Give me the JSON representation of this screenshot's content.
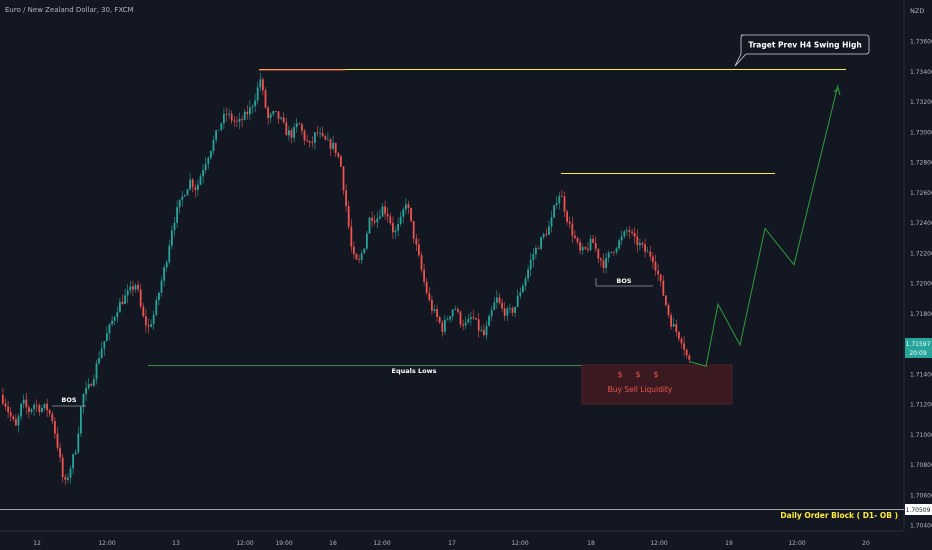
{
  "header": {
    "title": "Euro / New Zealand Dollar, 30, FXCM"
  },
  "price_axis": {
    "currency": "NZD",
    "ticks": [
      "1.73600",
      "1.73400",
      "1.73200",
      "1.73000",
      "1.72800",
      "1.72600",
      "1.72400",
      "1.72200",
      "1.72000",
      "1.71800",
      "1.71600",
      "1.71400",
      "1.71200",
      "1.71000",
      "1.70800",
      "1.70600",
      "1.70400"
    ],
    "last_price": "1.71597",
    "countdown": "20:09",
    "order_block_price": "1.70509"
  },
  "time_axis": {
    "ticks": [
      "12",
      "12:00",
      "13",
      "12:00",
      "19:00",
      "16",
      "12:00",
      "17",
      "12:00",
      "18",
      "12:00",
      "19",
      "12:00",
      "20"
    ]
  },
  "annotations": {
    "target_label": "Traget Prev H4 Swing High",
    "bos_left": "BOS",
    "bos_right": "BOS",
    "equal_lows": "Equals Lows",
    "dollar_signs": [
      "$",
      "$",
      "$"
    ],
    "liquidity_label": "Buy Sell Liquidity",
    "order_block_label": "Daily Order Block ( D1- OB )"
  },
  "colors": {
    "background": "#131722",
    "up_candle": "#26a69a",
    "down_candle": "#ef5350",
    "swing_line": "#ffeb3b",
    "equal_lows_line": "#4caf50",
    "projection_line": "#2e9e3a",
    "liquidity_box": "#3a1a20",
    "liquidity_text": "#ef5350",
    "order_block_text": "#ffeb3b",
    "last_price_badge": "#26a69a"
  },
  "chart_data": {
    "type": "candlestick",
    "symbol": "EURNZD",
    "timeframe": "30",
    "ylim": [
      1.704,
      1.737
    ],
    "levels": {
      "target_swing_high": 1.7343,
      "intermediate_swing_high": 1.7273,
      "equal_lows": 1.7147,
      "order_block": 1.70509,
      "last_price": 1.71597
    },
    "price_path": [
      [
        1.7128,
        0
      ],
      [
        1.7122,
        6
      ],
      [
        1.7112,
        12
      ],
      [
        1.7104,
        18
      ],
      [
        1.7122,
        24
      ],
      [
        1.7115,
        30
      ],
      [
        1.712,
        36
      ],
      [
        1.7117,
        42
      ],
      [
        1.7118,
        48
      ],
      [
        1.711,
        54
      ],
      [
        1.709,
        60
      ],
      [
        1.7065,
        66
      ],
      [
        1.7078,
        72
      ],
      [
        1.7092,
        78
      ],
      [
        1.7125,
        84
      ],
      [
        1.713,
        90
      ],
      [
        1.714,
        96
      ],
      [
        1.7155,
        102
      ],
      [
        1.7165,
        108
      ],
      [
        1.7175,
        114
      ],
      [
        1.7185,
        120
      ],
      [
        1.719,
        126
      ],
      [
        1.7195,
        132
      ],
      [
        1.72,
        138
      ],
      [
        1.7178,
        144
      ],
      [
        1.717,
        150
      ],
      [
        1.718,
        156
      ],
      [
        1.7198,
        162
      ],
      [
        1.7215,
        168
      ],
      [
        1.7238,
        174
      ],
      [
        1.725,
        180
      ],
      [
        1.726,
        186
      ],
      [
        1.7268,
        192
      ],
      [
        1.7262,
        198
      ],
      [
        1.7275,
        204
      ],
      [
        1.7285,
        210
      ],
      [
        1.7295,
        216
      ],
      [
        1.7305,
        222
      ],
      [
        1.7312,
        228
      ],
      [
        1.7308,
        234
      ],
      [
        1.7305,
        240
      ],
      [
        1.731,
        246
      ],
      [
        1.7315,
        252
      ],
      [
        1.7325,
        258
      ],
      [
        1.7335,
        262
      ],
      [
        1.732,
        266
      ],
      [
        1.7308,
        270
      ],
      [
        1.7312,
        276
      ],
      [
        1.7308,
        282
      ],
      [
        1.73,
        288
      ],
      [
        1.7298,
        294
      ],
      [
        1.7306,
        300
      ],
      [
        1.7296,
        306
      ],
      [
        1.729,
        312
      ],
      [
        1.73,
        318
      ],
      [
        1.7295,
        324
      ],
      [
        1.7292,
        330
      ],
      [
        1.729,
        336
      ],
      [
        1.728,
        342
      ],
      [
        1.725,
        348
      ],
      [
        1.7218,
        354
      ],
      [
        1.7212,
        360
      ],
      [
        1.7225,
        366
      ],
      [
        1.7245,
        372
      ],
      [
        1.7242,
        378
      ],
      [
        1.725,
        384
      ],
      [
        1.7245,
        390
      ],
      [
        1.7232,
        396
      ],
      [
        1.724,
        402
      ],
      [
        1.7255,
        408
      ],
      [
        1.7235,
        414
      ],
      [
        1.7218,
        420
      ],
      [
        1.72,
        426
      ],
      [
        1.7185,
        432
      ],
      [
        1.7178,
        438
      ],
      [
        1.717,
        444
      ],
      [
        1.7178,
        450
      ],
      [
        1.7185,
        456
      ],
      [
        1.7175,
        462
      ],
      [
        1.7172,
        468
      ],
      [
        1.7178,
        474
      ],
      [
        1.717,
        480
      ],
      [
        1.7165,
        486
      ],
      [
        1.7178,
        492
      ],
      [
        1.719,
        498
      ],
      [
        1.7182,
        504
      ],
      [
        1.718,
        510
      ],
      [
        1.7183,
        516
      ],
      [
        1.7195,
        522
      ],
      [
        1.7205,
        528
      ],
      [
        1.7218,
        534
      ],
      [
        1.7225,
        540
      ],
      [
        1.7232,
        546
      ],
      [
        1.7238,
        552
      ],
      [
        1.7255,
        558
      ],
      [
        1.726,
        562
      ],
      [
        1.725,
        566
      ],
      [
        1.724,
        570
      ],
      [
        1.723,
        576
      ],
      [
        1.722,
        582
      ],
      [
        1.7222,
        588
      ],
      [
        1.7228,
        594
      ],
      [
        1.7218,
        600
      ],
      [
        1.7212,
        606
      ],
      [
        1.722,
        612
      ],
      [
        1.7225,
        618
      ],
      [
        1.723,
        624
      ],
      [
        1.7236,
        630
      ],
      [
        1.7228,
        636
      ],
      [
        1.7225,
        642
      ],
      [
        1.722,
        648
      ],
      [
        1.7218,
        654
      ],
      [
        1.7205,
        660
      ],
      [
        1.719,
        666
      ],
      [
        1.7175,
        672
      ],
      [
        1.7168,
        678
      ],
      [
        1.7162,
        684
      ],
      [
        1.7148,
        690
      ]
    ],
    "projection": [
      [
        1.7145,
        706
      ],
      [
        1.7186,
        718
      ],
      [
        1.7159,
        740
      ],
      [
        1.7236,
        765
      ],
      [
        1.7212,
        794
      ],
      [
        1.7331,
        838
      ]
    ]
  }
}
